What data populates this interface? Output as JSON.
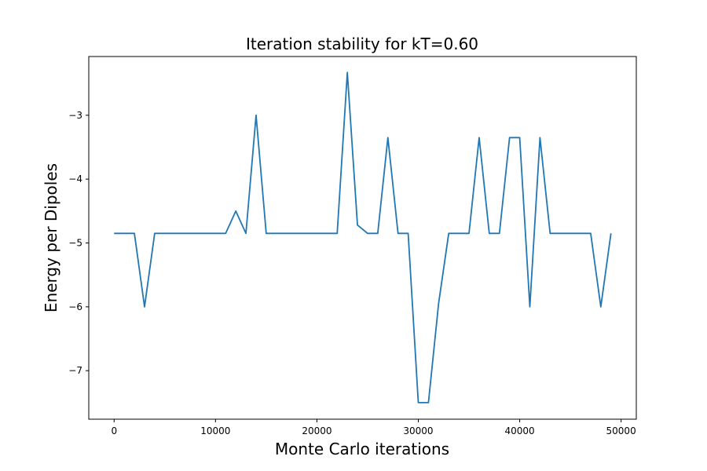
{
  "chart_data": {
    "type": "line",
    "title": "Iteration stability for kT=0.60",
    "xlabel": "Monte Carlo iterations",
    "ylabel": "Energy per Dipoles",
    "xlim": [
      -2500,
      51500
    ],
    "ylim": [
      -7.76,
      -2.08
    ],
    "xticks": [
      0,
      10000,
      20000,
      30000,
      40000,
      50000
    ],
    "xtick_labels": [
      "0",
      "10000",
      "20000",
      "30000",
      "40000",
      "50000"
    ],
    "yticks": [
      -3,
      -4,
      -5,
      -6,
      -7
    ],
    "ytick_labels": [
      "−3",
      "−4",
      "−5",
      "−6",
      "−7"
    ],
    "grid": false,
    "series": [
      {
        "name": "energy",
        "color": "#1f77b4",
        "x": [
          0,
          1000,
          2000,
          3000,
          4000,
          5000,
          6000,
          7000,
          8000,
          9000,
          10000,
          11000,
          12000,
          13000,
          14000,
          15000,
          16000,
          17000,
          18000,
          19000,
          20000,
          21000,
          22000,
          23000,
          24000,
          25000,
          26000,
          27000,
          28000,
          29000,
          30000,
          31000,
          32000,
          33000,
          34000,
          35000,
          36000,
          37000,
          38000,
          39000,
          40000,
          41000,
          42000,
          43000,
          44000,
          45000,
          46000,
          47000,
          48000,
          49000
        ],
        "y": [
          -4.85,
          -4.85,
          -4.85,
          -6.0,
          -4.85,
          -4.85,
          -4.85,
          -4.85,
          -4.85,
          -4.85,
          -4.85,
          -4.85,
          -4.5,
          -4.85,
          -3.0,
          -4.85,
          -4.85,
          -4.85,
          -4.85,
          -4.85,
          -4.85,
          -4.85,
          -4.85,
          -2.33,
          -4.72,
          -4.85,
          -4.85,
          -3.35,
          -4.85,
          -4.85,
          -7.5,
          -7.5,
          -5.95,
          -4.85,
          -4.85,
          -4.85,
          -3.35,
          -4.85,
          -4.85,
          -3.35,
          -3.35,
          -6.0,
          -3.35,
          -4.85,
          -4.85,
          -4.85,
          -4.85,
          -4.85,
          -6.0,
          -4.85
        ]
      }
    ]
  }
}
